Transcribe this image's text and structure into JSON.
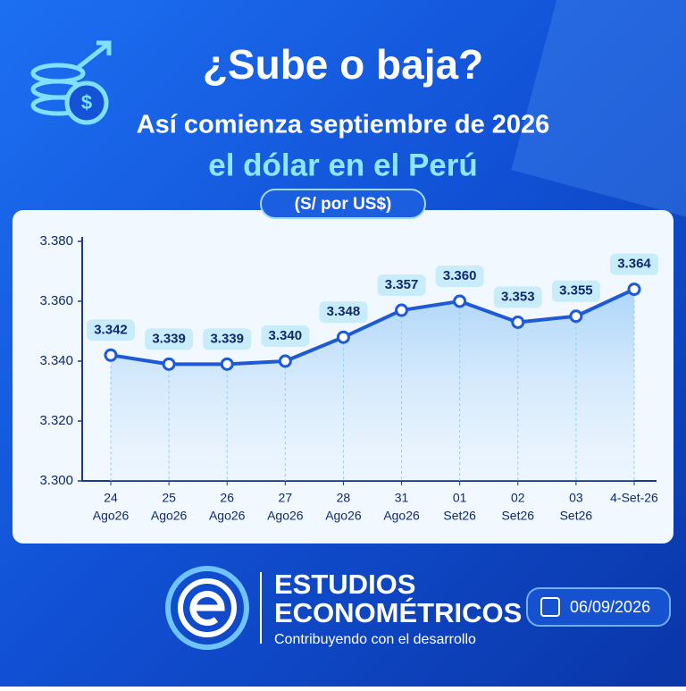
{
  "chart_data": {
    "type": "line",
    "title": "¿Sube o baja?",
    "subtitle": [
      "Así comienza septiembre de 2026",
      "el dólar en el Perú"
    ],
    "unit": "(S/ por US$)",
    "categories": [
      [
        "24",
        "Ago26"
      ],
      [
        "25",
        "Ago26"
      ],
      [
        "26",
        "Ago26"
      ],
      [
        "27",
        "Ago26"
      ],
      [
        "28",
        "Ago26"
      ],
      [
        "31",
        "Ago26"
      ],
      [
        "01",
        "Set26"
      ],
      [
        "02",
        "Set26"
      ],
      [
        "03",
        "Set26"
      ],
      [
        "4-Set-26"
      ]
    ],
    "values": [
      3.342,
      3.339,
      3.339,
      3.34,
      3.348,
      3.357,
      3.36,
      3.353,
      3.355,
      3.364
    ],
    "value_labels": [
      "3.342",
      "3.339",
      "3.339",
      "3.340",
      "3.348",
      "3.357",
      "3.360",
      "3.353",
      "3.355",
      "3.364"
    ],
    "color": "#1f5ad6",
    "ylim": [
      3.3,
      3.38
    ],
    "yticks": [
      {
        "value": 3.3,
        "label": "3.300"
      },
      {
        "value": 3.32,
        "label": "3.320"
      },
      {
        "value": 3.34,
        "label": "3.340"
      },
      {
        "value": 3.36,
        "label": "3.360"
      },
      {
        "value": 3.38,
        "label": "3.380"
      }
    ]
  },
  "branding": {
    "name": [
      "ESTUDIOS",
      "ECONOMÉTRICOS"
    ],
    "tagline": "Contribuyendo con el desarrollo",
    "date": "06/09/2026"
  }
}
